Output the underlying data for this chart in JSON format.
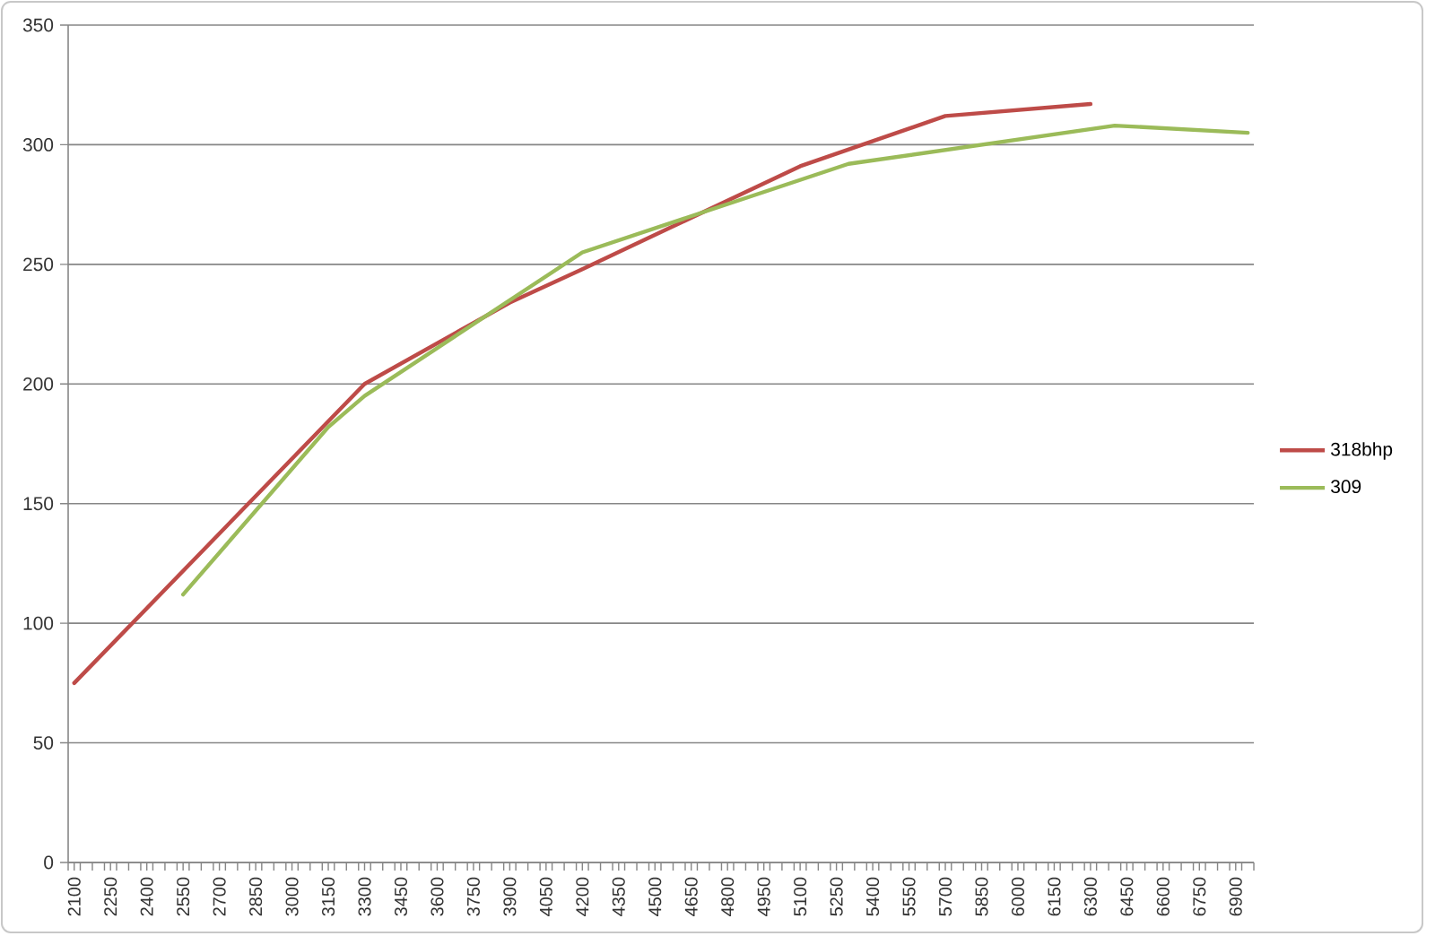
{
  "chart_data": {
    "type": "line",
    "series": [
      {
        "name": "318bhp",
        "color": "#be4b48",
        "x": [
          2100,
          3300,
          3900,
          4200,
          5100,
          5700,
          6300
        ],
        "values": [
          75,
          200,
          234,
          248,
          291,
          312,
          317
        ]
      },
      {
        "name": "309",
        "color": "#9bbb59",
        "x": [
          2550,
          3150,
          3300,
          4200,
          5300,
          6400,
          6950
        ],
        "values": [
          112,
          182,
          195,
          255,
          292,
          308,
          305
        ]
      }
    ],
    "xlim": [
      2075,
      6975
    ],
    "xticks": [
      {
        "value": 2075,
        "label": null
      },
      2100,
      {
        "value": 2125,
        "label": null
      },
      {
        "value": 2175,
        "label": null
      },
      {
        "value": 2225,
        "label": null
      },
      2250,
      {
        "value": 2275,
        "label": null
      },
      {
        "value": 2325,
        "label": null
      },
      {
        "value": 2375,
        "label": null
      },
      2400,
      {
        "value": 2425,
        "label": null
      },
      {
        "value": 2475,
        "label": null
      },
      {
        "value": 2525,
        "label": null
      },
      2550,
      {
        "value": 2575,
        "label": null
      },
      {
        "value": 2625,
        "label": null
      },
      {
        "value": 2675,
        "label": null
      },
      2700,
      {
        "value": 2725,
        "label": null
      },
      {
        "value": 2775,
        "label": null
      },
      {
        "value": 2825,
        "label": null
      },
      2850,
      {
        "value": 2875,
        "label": null
      },
      {
        "value": 2925,
        "label": null
      },
      {
        "value": 2975,
        "label": null
      },
      3000,
      {
        "value": 3025,
        "label": null
      },
      {
        "value": 3075,
        "label": null
      },
      {
        "value": 3125,
        "label": null
      },
      3150,
      {
        "value": 3175,
        "label": null
      },
      {
        "value": 3225,
        "label": null
      },
      {
        "value": 3275,
        "label": null
      },
      3300,
      {
        "value": 3325,
        "label": null
      },
      {
        "value": 3375,
        "label": null
      },
      {
        "value": 3425,
        "label": null
      },
      3450,
      {
        "value": 3475,
        "label": null
      },
      {
        "value": 3525,
        "label": null
      },
      {
        "value": 3575,
        "label": null
      },
      3600,
      {
        "value": 3625,
        "label": null
      },
      {
        "value": 3675,
        "label": null
      },
      {
        "value": 3725,
        "label": null
      },
      3750,
      {
        "value": 3775,
        "label": null
      },
      {
        "value": 3825,
        "label": null
      },
      {
        "value": 3875,
        "label": null
      },
      3900,
      {
        "value": 3925,
        "label": null
      },
      {
        "value": 3975,
        "label": null
      },
      {
        "value": 4025,
        "label": null
      },
      4050,
      {
        "value": 4075,
        "label": null
      },
      {
        "value": 4125,
        "label": null
      },
      {
        "value": 4175,
        "label": null
      },
      4200,
      {
        "value": 4225,
        "label": null
      },
      {
        "value": 4275,
        "label": null
      },
      {
        "value": 4325,
        "label": null
      },
      4350,
      {
        "value": 4375,
        "label": null
      },
      {
        "value": 4425,
        "label": null
      },
      {
        "value": 4475,
        "label": null
      },
      4500,
      {
        "value": 4525,
        "label": null
      },
      {
        "value": 4575,
        "label": null
      },
      {
        "value": 4625,
        "label": null
      },
      4650,
      {
        "value": 4675,
        "label": null
      },
      {
        "value": 4725,
        "label": null
      },
      {
        "value": 4775,
        "label": null
      },
      4800,
      {
        "value": 4825,
        "label": null
      },
      {
        "value": 4875,
        "label": null
      },
      {
        "value": 4925,
        "label": null
      },
      4950,
      {
        "value": 4975,
        "label": null
      },
      {
        "value": 5025,
        "label": null
      },
      {
        "value": 5075,
        "label": null
      },
      5100,
      {
        "value": 5125,
        "label": null
      },
      {
        "value": 5175,
        "label": null
      },
      {
        "value": 5225,
        "label": null
      },
      5250,
      {
        "value": 5275,
        "label": null
      },
      {
        "value": 5325,
        "label": null
      },
      {
        "value": 5375,
        "label": null
      },
      5400,
      {
        "value": 5425,
        "label": null
      },
      {
        "value": 5475,
        "label": null
      },
      {
        "value": 5525,
        "label": null
      },
      5550,
      {
        "value": 5575,
        "label": null
      },
      {
        "value": 5625,
        "label": null
      },
      {
        "value": 5675,
        "label": null
      },
      5700,
      {
        "value": 5725,
        "label": null
      },
      {
        "value": 5775,
        "label": null
      },
      {
        "value": 5825,
        "label": null
      },
      5850,
      {
        "value": 5875,
        "label": null
      },
      {
        "value": 5925,
        "label": null
      },
      {
        "value": 5975,
        "label": null
      },
      6000,
      {
        "value": 6025,
        "label": null
      },
      {
        "value": 6075,
        "label": null
      },
      {
        "value": 6125,
        "label": null
      },
      6150,
      {
        "value": 6175,
        "label": null
      },
      {
        "value": 6225,
        "label": null
      },
      {
        "value": 6275,
        "label": null
      },
      6300,
      {
        "value": 6325,
        "label": null
      },
      {
        "value": 6375,
        "label": null
      },
      {
        "value": 6425,
        "label": null
      },
      6450,
      {
        "value": 6475,
        "label": null
      },
      {
        "value": 6525,
        "label": null
      },
      {
        "value": 6575,
        "label": null
      },
      6600,
      {
        "value": 6625,
        "label": null
      },
      {
        "value": 6675,
        "label": null
      },
      {
        "value": 6725,
        "label": null
      },
      6750,
      {
        "value": 6775,
        "label": null
      },
      {
        "value": 6825,
        "label": null
      },
      {
        "value": 6875,
        "label": null
      },
      6900,
      {
        "value": 6925,
        "label": null
      },
      {
        "value": 6975,
        "label": null
      }
    ],
    "ylim": [
      0,
      350
    ],
    "yticks": [
      0,
      50,
      100,
      150,
      200,
      250,
      300,
      350
    ],
    "grid": "y",
    "legend": "right"
  }
}
